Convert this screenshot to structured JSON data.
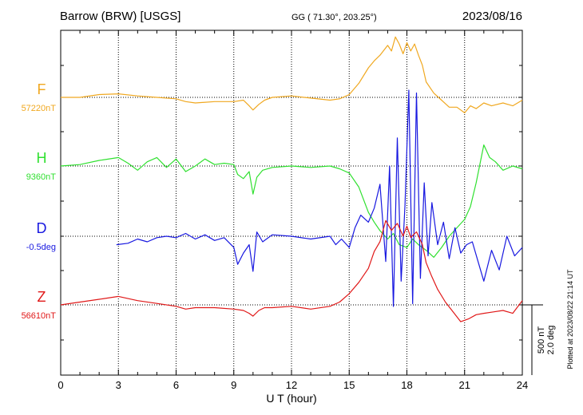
{
  "chart_data": {
    "type": "line",
    "title": "Barrow (BRW)  [USGS]",
    "subtitle": "GG ( 71.30°, 203.25°)",
    "date": "2023/08/16",
    "xlabel": "U T (hour)",
    "xlim": [
      0,
      24
    ],
    "xticks": [
      "0",
      "3",
      "6",
      "9",
      "12",
      "15",
      "18",
      "21",
      "24"
    ],
    "scale_label_1": "500 nT",
    "scale_label_2": "2.0 deg",
    "footer": "Plotted at 2023/08/22 21:14 UT",
    "grid": true,
    "series": [
      {
        "name": "F",
        "baseline": "57220nT",
        "color": "#f0a820",
        "x": [
          0,
          1,
          2,
          3,
          4,
          5,
          6,
          6.5,
          7,
          8,
          9,
          9.5,
          9.8,
          10,
          10.3,
          10.6,
          11,
          12,
          13,
          14,
          14.5,
          15,
          15.5,
          16,
          16.3,
          16.6,
          17,
          17.2,
          17.4,
          17.6,
          17.8,
          18,
          18.2,
          18.4,
          18.6,
          18.8,
          19,
          19.4,
          19.8,
          20.2,
          20.6,
          21,
          21.3,
          21.6,
          22,
          22.4,
          23,
          23.5,
          24
        ],
        "values": [
          0,
          0,
          20,
          25,
          10,
          0,
          -10,
          -30,
          -40,
          -30,
          -30,
          -20,
          -60,
          -90,
          -50,
          -20,
          0,
          10,
          -5,
          -20,
          -10,
          20,
          100,
          210,
          260,
          300,
          370,
          330,
          430,
          380,
          310,
          390,
          330,
          380,
          300,
          230,
          110,
          30,
          -20,
          -70,
          -70,
          -110,
          -60,
          -80,
          -40,
          -60,
          -40,
          -60,
          -20
        ]
      },
      {
        "name": "H",
        "baseline": "9360nT",
        "color": "#30e030",
        "x": [
          0,
          1,
          2,
          3,
          3.5,
          4,
          4.5,
          5,
          5.5,
          6,
          6.5,
          7,
          7.5,
          8,
          8.5,
          9,
          9.2,
          9.5,
          9.8,
          10,
          10.2,
          10.5,
          11,
          12,
          13,
          14,
          14.5,
          15,
          15.5,
          16,
          16.3,
          16.6,
          17,
          17.3,
          17.6,
          18,
          18.3,
          18.6,
          19,
          19.4,
          19.8,
          20.2,
          20.6,
          21,
          21.3,
          21.6,
          22,
          22.3,
          22.6,
          23,
          23.5,
          24
        ],
        "values": [
          0,
          10,
          40,
          60,
          20,
          -30,
          30,
          60,
          -10,
          50,
          -40,
          0,
          50,
          10,
          20,
          10,
          -60,
          -90,
          -40,
          -200,
          -80,
          -30,
          -10,
          0,
          -10,
          0,
          -20,
          -50,
          -150,
          -330,
          -400,
          -460,
          -520,
          -480,
          -560,
          -580,
          -520,
          -560,
          -600,
          -650,
          -580,
          -500,
          -440,
          -380,
          -290,
          -120,
          150,
          60,
          30,
          -30,
          0,
          -20
        ]
      },
      {
        "name": "D",
        "baseline": "-0.5deg",
        "color": "#1818e0",
        "x": [
          2.9,
          3.5,
          4,
          4.5,
          5,
          5.5,
          6,
          6.5,
          7,
          7.5,
          8,
          8.5,
          9,
          9.2,
          9.5,
          9.8,
          10,
          10.2,
          10.5,
          11,
          12,
          13,
          14,
          14.3,
          14.6,
          15,
          15.3,
          15.6,
          16,
          16.3,
          16.6,
          16.9,
          17.1,
          17.3,
          17.5,
          17.7,
          17.9,
          18.1,
          18.3,
          18.5,
          18.7,
          18.9,
          19.1,
          19.3,
          19.6,
          19.9,
          20.2,
          20.5,
          20.8,
          21.1,
          21.4,
          21.7,
          22,
          22.4,
          22.8,
          23.2,
          23.6,
          24
        ],
        "values": [
          -60,
          -50,
          -20,
          -40,
          -10,
          0,
          -10,
          20,
          -20,
          10,
          -30,
          -10,
          -80,
          -200,
          -120,
          -60,
          -250,
          30,
          -40,
          10,
          0,
          -20,
          0,
          -60,
          -20,
          -80,
          60,
          150,
          100,
          200,
          370,
          -180,
          500,
          -500,
          700,
          -320,
          220,
          1040,
          -480,
          1020,
          -300,
          380,
          -140,
          240,
          -60,
          100,
          -160,
          60,
          -120,
          -60,
          -40,
          -180,
          -320,
          -100,
          -240,
          0,
          -140,
          -80
        ]
      },
      {
        "name": "Z",
        "baseline": "56610nT",
        "color": "#e01818",
        "x": [
          0,
          1,
          2,
          3,
          4,
          5,
          6,
          6.5,
          7,
          8,
          9,
          9.5,
          9.8,
          10,
          10.3,
          10.6,
          11,
          12,
          13,
          14,
          14.5,
          15,
          15.5,
          16,
          16.3,
          16.6,
          16.9,
          17.2,
          17.5,
          17.8,
          18,
          18.2,
          18.5,
          18.8,
          19,
          19.3,
          19.6,
          20,
          20.4,
          20.8,
          21.2,
          21.6,
          22,
          22.5,
          23,
          23.5,
          24
        ],
        "values": [
          0,
          20,
          40,
          60,
          30,
          10,
          -10,
          -30,
          -20,
          -20,
          -30,
          -40,
          -60,
          -80,
          -40,
          -20,
          -20,
          -10,
          -30,
          -10,
          20,
          80,
          160,
          260,
          380,
          450,
          600,
          530,
          580,
          490,
          560,
          480,
          520,
          430,
          300,
          200,
          110,
          20,
          -50,
          -120,
          -100,
          -70,
          -60,
          -50,
          -40,
          -60,
          30
        ]
      }
    ]
  }
}
